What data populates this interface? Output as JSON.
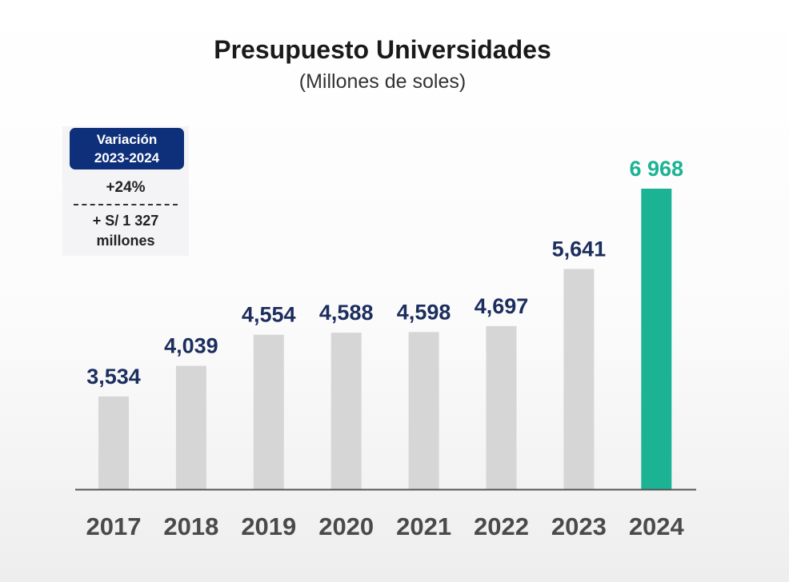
{
  "chart_data": {
    "type": "bar",
    "title": "Presupuesto Universidades",
    "subtitle": "(Millones de soles)",
    "categories": [
      "2017",
      "2018",
      "2019",
      "2020",
      "2021",
      "2022",
      "2023",
      "2024"
    ],
    "values": [
      3534,
      4039,
      4554,
      4588,
      4598,
      4697,
      5641,
      6968
    ],
    "data_labels": [
      "3,534",
      "4,039",
      "4,554",
      "4,588",
      "4,598",
      "4,697",
      "5,641",
      "6 968"
    ],
    "ylim": [
      2000,
      7000
    ],
    "grid": false,
    "colors": {
      "default_bar": "#d6d6d6",
      "highlight_bar": "#1bb394",
      "label": "#1c2e5e",
      "highlight_label": "#1bb394",
      "axis": "#555555",
      "tick_label": "#4a4a4a"
    },
    "highlight_index": 7
  },
  "variation": {
    "heading_line1": "Variación",
    "heading_line2": "2023-2024",
    "percent": "+24%",
    "amount_line1": "+ S/ 1 327",
    "amount_line2": "millones",
    "heading_color": "#0e2f7a"
  }
}
